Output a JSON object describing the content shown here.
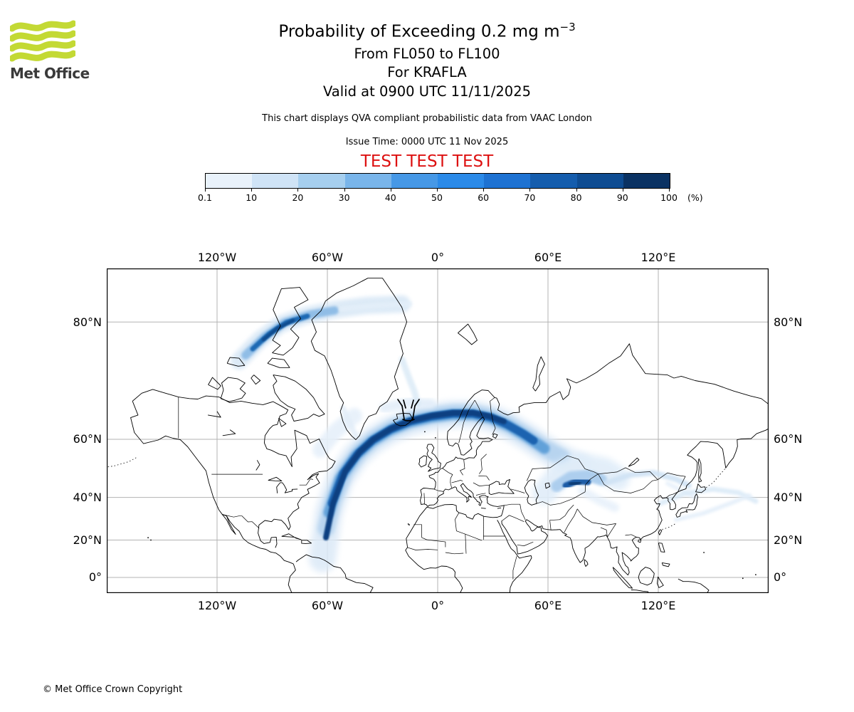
{
  "logo": {
    "brand": "Met Office"
  },
  "header": {
    "title_prefix": "Probability of Exceeding 0.2 mg m",
    "title_exponent": "−3",
    "line_flight_levels": "From FL050 to FL100",
    "line_volcano": "For KRAFLA",
    "line_valid": "Valid at 0900 UTC 11/11/2025",
    "note": "This chart displays QVA compliant probabilistic data from VAAC London",
    "issue_time": "Issue Time: 0000 UTC 11 Nov 2025",
    "test_banner": "TEST TEST TEST"
  },
  "theme": {
    "test_banner_color": "#dd1111",
    "brand_green": "#c3d934",
    "brand_text": "#3a3a3a",
    "grid_gray": "#b3b3b3",
    "coast_black": "#000000"
  },
  "colorbar": {
    "tick_labels": [
      "0.1",
      "10",
      "20",
      "30",
      "40",
      "50",
      "60",
      "70",
      "80",
      "90",
      "100"
    ],
    "unit": "(%)",
    "colors": [
      "#e9f2fb",
      "#cfe3f6",
      "#a6cfef",
      "#79b5ea",
      "#4698e6",
      "#2b8ae8",
      "#1e72d2",
      "#155dad",
      "#0e4c92",
      "#0a3263"
    ]
  },
  "map_axes": {
    "top": [
      "120°W",
      "60°W",
      "0°",
      "60°E",
      "120°E"
    ],
    "bottom": [
      "120°W",
      "60°W",
      "0°",
      "60°E",
      "120°E"
    ],
    "left": [
      "80°N",
      "60°N",
      "40°N",
      "20°N",
      "0°"
    ],
    "right": [
      "80°N",
      "60°N",
      "40°N",
      "20°N",
      "0°"
    ]
  },
  "footer": {
    "copyright": "© Met Office Crown Copyright"
  },
  "chart_data": {
    "type": "heatmap",
    "title": "Probability of Exceeding 0.2 mg m−3",
    "subtitle": [
      "From FL050 to FL100",
      "For KRAFLA",
      "Valid at 0900 UTC 11/11/2025"
    ],
    "projection": "mercator",
    "x_axis": {
      "tick_labels": [
        "120°W",
        "60°W",
        "0°",
        "60°E",
        "120°E"
      ],
      "range_deg": [
        -180,
        180
      ]
    },
    "y_axis": {
      "tick_labels": [
        "80°N",
        "60°N",
        "40°N",
        "20°N",
        "0°"
      ],
      "range_deg": [
        -8.5,
        85
      ]
    },
    "legend": {
      "label": "(%)",
      "bin_edges_percent": [
        0.1,
        10,
        20,
        30,
        40,
        50,
        60,
        70,
        80,
        90,
        100
      ],
      "colors": [
        "#e9f2fb",
        "#cfe3f6",
        "#a6cfef",
        "#79b5ea",
        "#4698e6",
        "#2b8ae8",
        "#1e72d2",
        "#155dad",
        "#0e4c92",
        "#0a3263"
      ]
    },
    "volcano_marker": {
      "name": "KRAFLA",
      "lon": -16.8,
      "lat": 65.7
    },
    "plumes": [
      {
        "region": "North Atlantic band from south of Greenland across Iceland and Scandinavia, bending southeast into western Russia (~50–66°N, 50°W–55°E)",
        "max_probability_pct": 100
      },
      {
        "region": "Southward tail off southern Greenland down to ~50°N near 45°W",
        "max_probability_pct": 90
      },
      {
        "region": "Canadian Arctic archipelago streak along ~74–81°N from 105°W to 40°W",
        "max_probability_pct": 90
      },
      {
        "region": "Kazakhstan / Central Asia patch near 42–50°N, 62–85°E",
        "max_probability_pct": 90
      },
      {
        "region": "Streak across northwest China / Mongolia near 42–46°N, 85–115°E",
        "max_probability_pct": 50
      },
      {
        "region": "Diffuse arcs over Japan and northwest Pacific near 30–42°N, 125–155°E",
        "max_probability_pct": 20
      }
    ]
  }
}
